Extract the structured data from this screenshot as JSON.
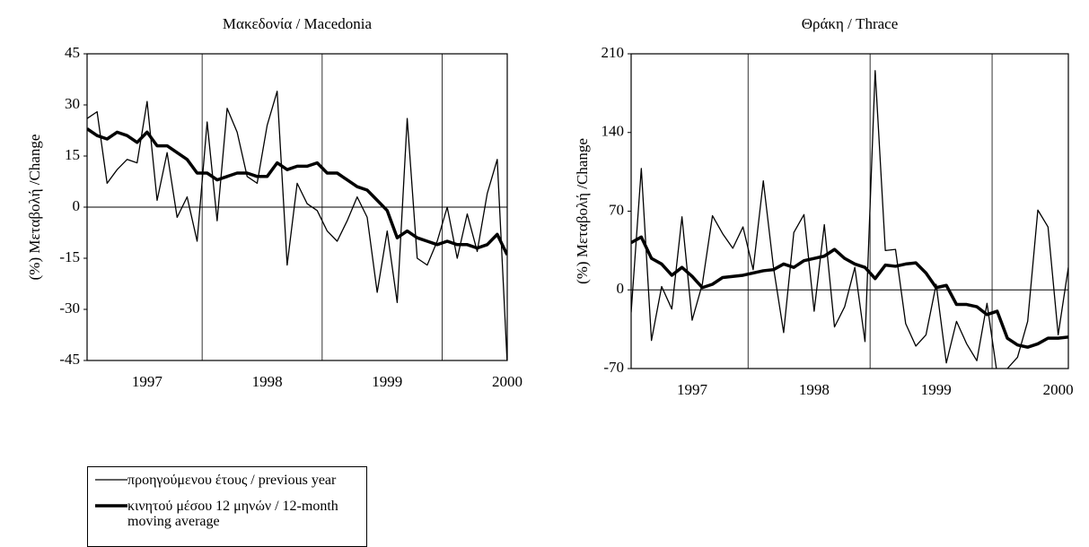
{
  "chart_data": [
    {
      "type": "line",
      "title": "Μακεδονία / Macedonia",
      "y_label": "(%) Μεταβολή /Change",
      "categories": [
        null,
        null,
        null,
        null,
        null,
        null,
        "1997",
        null,
        null,
        null,
        null,
        null,
        null,
        null,
        null,
        null,
        null,
        null,
        "1998",
        null,
        null,
        null,
        null,
        null,
        null,
        null,
        null,
        null,
        null,
        null,
        "1999",
        null,
        null,
        null,
        null,
        null,
        null,
        null,
        null,
        null,
        null,
        null,
        "2000"
      ],
      "series": [
        {
          "name": "προηγούμενου έτους / previous year",
          "color": "#000000",
          "linewidth": 1.3,
          "values": [
            26,
            28,
            7,
            11,
            14,
            13,
            31,
            2,
            16,
            -3,
            3,
            -10,
            25,
            -4,
            29,
            22,
            9,
            7,
            24,
            34,
            -17,
            7,
            1,
            -1,
            -7,
            -10,
            -4,
            3,
            -3,
            -25,
            -7,
            -28,
            26,
            -15,
            -17,
            -10,
            0,
            -15,
            -2,
            -13,
            4,
            14,
            -46
          ]
        },
        {
          "name": "κινητού μέσου 12 μηνών / 12-month moving average",
          "color": "#000000",
          "linewidth": 3.5,
          "values": [
            23,
            21,
            20,
            22,
            21,
            19,
            22,
            18,
            18,
            16,
            14,
            10,
            10,
            8,
            9,
            10,
            10,
            9,
            9,
            13,
            11,
            12,
            12,
            13,
            10,
            10,
            8,
            6,
            5,
            2,
            -1,
            -9,
            -7,
            -9,
            -10,
            -11,
            -10,
            -11,
            -11,
            -12,
            -11,
            -8,
            -14
          ]
        }
      ],
      "ylim": [
        -45,
        45
      ],
      "yticks": [
        -45,
        -30,
        -15,
        0,
        15,
        30,
        45
      ]
    },
    {
      "type": "line",
      "title": "Θράκη / Thrace",
      "y_label": "(%) Μεταβολή /Change",
      "categories": [
        null,
        null,
        null,
        null,
        null,
        null,
        "1997",
        null,
        null,
        null,
        null,
        null,
        null,
        null,
        null,
        null,
        null,
        null,
        "1998",
        null,
        null,
        null,
        null,
        null,
        null,
        null,
        null,
        null,
        null,
        null,
        "1999",
        null,
        null,
        null,
        null,
        null,
        null,
        null,
        null,
        null,
        null,
        null,
        "2000",
        null
      ],
      "series": [
        {
          "name": "προηγούμενου έτους / previous year",
          "color": "#000000",
          "linewidth": 1.3,
          "values": [
            -20,
            108,
            -45,
            3,
            -17,
            65,
            -27,
            5,
            66,
            50,
            37,
            56,
            18,
            97,
            20,
            -38,
            51,
            67,
            -19,
            58,
            -33,
            -15,
            20,
            -46,
            195,
            35,
            36,
            -30,
            -50,
            -40,
            5,
            -65,
            -28,
            -48,
            -63,
            -12,
            -75,
            -70,
            -60,
            -28,
            71,
            56,
            -40,
            20
          ]
        },
        {
          "name": "κινητού μέσου 12 μηνών / 12-month moving average",
          "color": "#000000",
          "linewidth": 3.5,
          "values": [
            42,
            47,
            28,
            23,
            13,
            20,
            12,
            2,
            5,
            11,
            12,
            13,
            15,
            17,
            18,
            23,
            20,
            26,
            28,
            30,
            36,
            28,
            23,
            20,
            10,
            22,
            21,
            23,
            24,
            15,
            2,
            4,
            -13,
            -13,
            -15,
            -22,
            -19,
            -43,
            -49,
            -51,
            -48,
            -43,
            -43,
            -42
          ]
        }
      ],
      "ylim": [
        -70,
        210
      ],
      "yticks": [
        -70,
        0,
        70,
        140,
        210
      ]
    }
  ]
}
